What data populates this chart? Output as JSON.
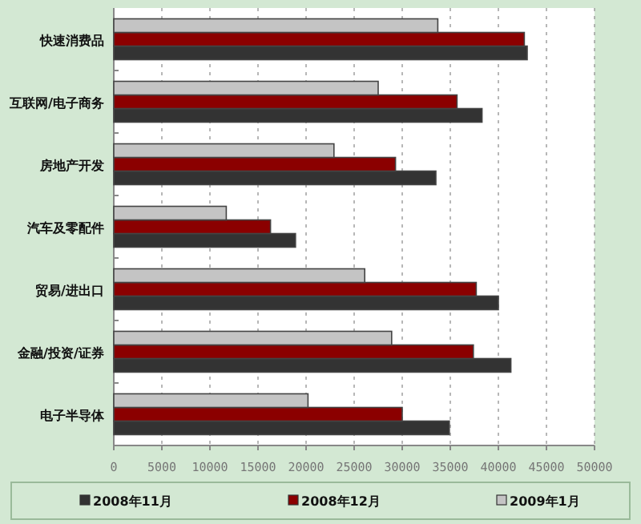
{
  "chart_data": {
    "type": "bar",
    "orientation": "horizontal",
    "categories": [
      "快速消费品",
      "互联网/电子商务",
      "房地产开发",
      "汽车及零配件",
      "贸易/进出口",
      "金融/投资/证券",
      "电子半导体"
    ],
    "series": [
      {
        "name": "2008年11月",
        "color": "#333333",
        "values": [
          43000,
          38300,
          33500,
          18900,
          40000,
          41300,
          34900
        ]
      },
      {
        "name": "2008年12月",
        "color": "#8b0000",
        "values": [
          42700,
          35700,
          29300,
          16300,
          37700,
          37400,
          30000
        ]
      },
      {
        "name": "2009年1月",
        "color": "#c4c4c4",
        "values": [
          33700,
          27500,
          22900,
          11700,
          26100,
          28900,
          20200
        ]
      }
    ],
    "xlim": [
      0,
      50000
    ],
    "xticks": [
      0,
      5000,
      10000,
      15000,
      20000,
      25000,
      30000,
      35000,
      40000,
      45000,
      50000
    ],
    "grid": "x",
    "legend": "bottom"
  }
}
